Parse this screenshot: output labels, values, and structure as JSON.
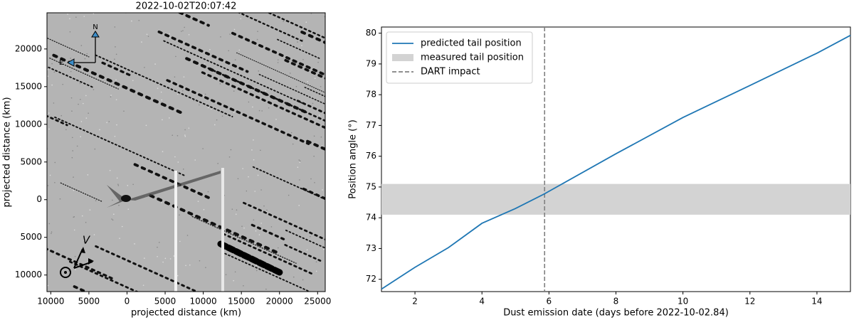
{
  "chart_data": [
    {
      "type": "image",
      "title": "2022-10-02T20:07:42",
      "xlabel": "projected distance (km)",
      "ylabel": "projected distance (km)",
      "xlim": [
        -10500,
        26000
      ],
      "ylim": [
        -12200,
        24800
      ],
      "xticks": [
        {
          "value": -10000,
          "label": "10000"
        },
        {
          "value": -5000,
          "label": "5000"
        },
        0,
        5000,
        10000,
        15000,
        20000,
        25000
      ],
      "yticks": [
        {
          "value": -10000,
          "label": "10000"
        },
        {
          "value": -5000,
          "label": "5000"
        },
        0,
        5000,
        10000,
        15000,
        20000
      ],
      "annotations": [
        "N",
        "E",
        "V"
      ]
    },
    {
      "type": "line",
      "xlabel": "Dust emission date (days before 2022-10-02.84)",
      "ylabel": "Position angle (°)",
      "xlim": [
        1,
        15
      ],
      "ylim": [
        71.6,
        80.2
      ],
      "xticks": [
        2,
        4,
        6,
        8,
        10,
        12,
        14
      ],
      "yticks": [
        72,
        73,
        74,
        75,
        76,
        77,
        78,
        79,
        80
      ],
      "series": [
        {
          "name": "predicted tail position",
          "color": "#1f77b4",
          "x": [
            1,
            2,
            3,
            4,
            5,
            5.87,
            6,
            8,
            10,
            12,
            14,
            15
          ],
          "values": [
            71.68,
            72.39,
            73.03,
            73.82,
            74.3,
            74.78,
            74.86,
            76.08,
            77.26,
            78.3,
            79.35,
            79.93
          ]
        }
      ],
      "bands": [
        {
          "name": "measured tail position",
          "range": [
            74.1,
            75.1
          ],
          "color": "#d3d3d3"
        }
      ],
      "vlines": [
        {
          "name": "DART impact",
          "x": 5.87,
          "color": "#808080"
        }
      ],
      "legend": "upper left"
    }
  ]
}
